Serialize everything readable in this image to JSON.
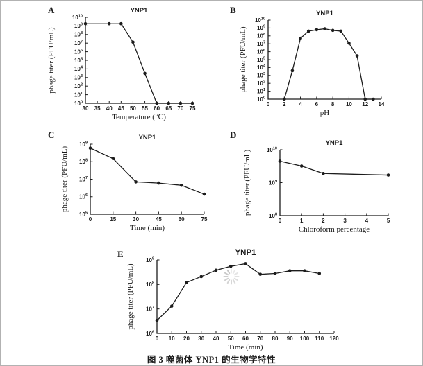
{
  "figure": {
    "caption": "图 3  噬菌体 YNP1 的生物学特性",
    "spinner_icon": "loading-spinner"
  },
  "chart_data": [
    {
      "panel": "A",
      "type": "line",
      "title": "YNP1",
      "xlabel": "Temperature (℃)",
      "ylabel": "phage titer (PFU/mL)",
      "x_range": [
        30,
        75
      ],
      "x_ticks": [
        30,
        35,
        40,
        45,
        50,
        55,
        60,
        65,
        70,
        75
      ],
      "y_exp_range": [
        0,
        10
      ],
      "grid": false,
      "points": [
        [
          30,
          1800000000.0
        ],
        [
          40,
          1800000000.0
        ],
        [
          45,
          1800000000.0
        ],
        [
          50,
          13000000.0
        ],
        [
          55,
          3000.0
        ],
        [
          60,
          1
        ],
        [
          65,
          1
        ],
        [
          70,
          1
        ],
        [
          75,
          1
        ]
      ]
    },
    {
      "panel": "B",
      "type": "line",
      "title": "YNP1",
      "xlabel": "pH",
      "ylabel": "phage titer (PFU/mL)",
      "x_range": [
        0,
        14
      ],
      "x_ticks": [
        0,
        2,
        4,
        6,
        8,
        10,
        12,
        14
      ],
      "y_exp_range": [
        0,
        10
      ],
      "grid": false,
      "points": [
        [
          2,
          1
        ],
        [
          3,
          4000.0
        ],
        [
          4,
          50000000.0
        ],
        [
          5,
          400000000.0
        ],
        [
          6,
          600000000.0
        ],
        [
          7,
          800000000.0
        ],
        [
          8,
          500000000.0
        ],
        [
          9,
          400000000.0
        ],
        [
          10,
          12000000.0
        ],
        [
          11,
          300000.0
        ],
        [
          12,
          1
        ],
        [
          13,
          1
        ]
      ]
    },
    {
      "panel": "C",
      "type": "line",
      "title": "YNP1",
      "xlabel": "Time (min)",
      "ylabel": "phage titer (PFU/mL)",
      "x_range": [
        0,
        75
      ],
      "x_ticks": [
        0,
        15,
        30,
        45,
        60,
        75
      ],
      "y_exp_range": [
        5,
        9
      ],
      "grid": false,
      "points": [
        [
          0,
          600000000.0
        ],
        [
          15,
          150000000.0
        ],
        [
          30,
          7000000.0
        ],
        [
          45,
          6000000.0
        ],
        [
          60,
          4500000.0
        ],
        [
          75,
          1400000.0
        ]
      ]
    },
    {
      "panel": "D",
      "type": "line",
      "title": "YNP1",
      "xlabel": "Chloroform percentage",
      "ylabel": "phage titer (PFU/mL)",
      "x_range": [
        0,
        5
      ],
      "x_ticks": [
        0,
        1,
        2,
        3,
        4,
        5
      ],
      "y_exp_range": [
        8,
        10
      ],
      "grid": false,
      "points": [
        [
          0,
          4500000000.0
        ],
        [
          1,
          3200000000.0
        ],
        [
          2,
          1900000000.0
        ],
        [
          5,
          1700000000.0
        ]
      ]
    },
    {
      "panel": "E",
      "type": "line",
      "title": "YNP1",
      "xlabel": "Time (min)",
      "ylabel": "phage titer (PFU/mL)",
      "x_range": [
        0,
        120
      ],
      "x_ticks": [
        0,
        10,
        20,
        30,
        40,
        50,
        60,
        70,
        80,
        90,
        100,
        110,
        120
      ],
      "y_exp_range": [
        6,
        9
      ],
      "grid": false,
      "points": [
        [
          0,
          3400000.0
        ],
        [
          10,
          13000000.0
        ],
        [
          20,
          120000000.0
        ],
        [
          30,
          210000000.0
        ],
        [
          40,
          380000000.0
        ],
        [
          50,
          550000000.0
        ],
        [
          60,
          700000000.0
        ],
        [
          70,
          260000000.0
        ],
        [
          80,
          280000000.0
        ],
        [
          90,
          360000000.0
        ],
        [
          100,
          360000000.0
        ],
        [
          110,
          280000000.0
        ]
      ]
    }
  ]
}
